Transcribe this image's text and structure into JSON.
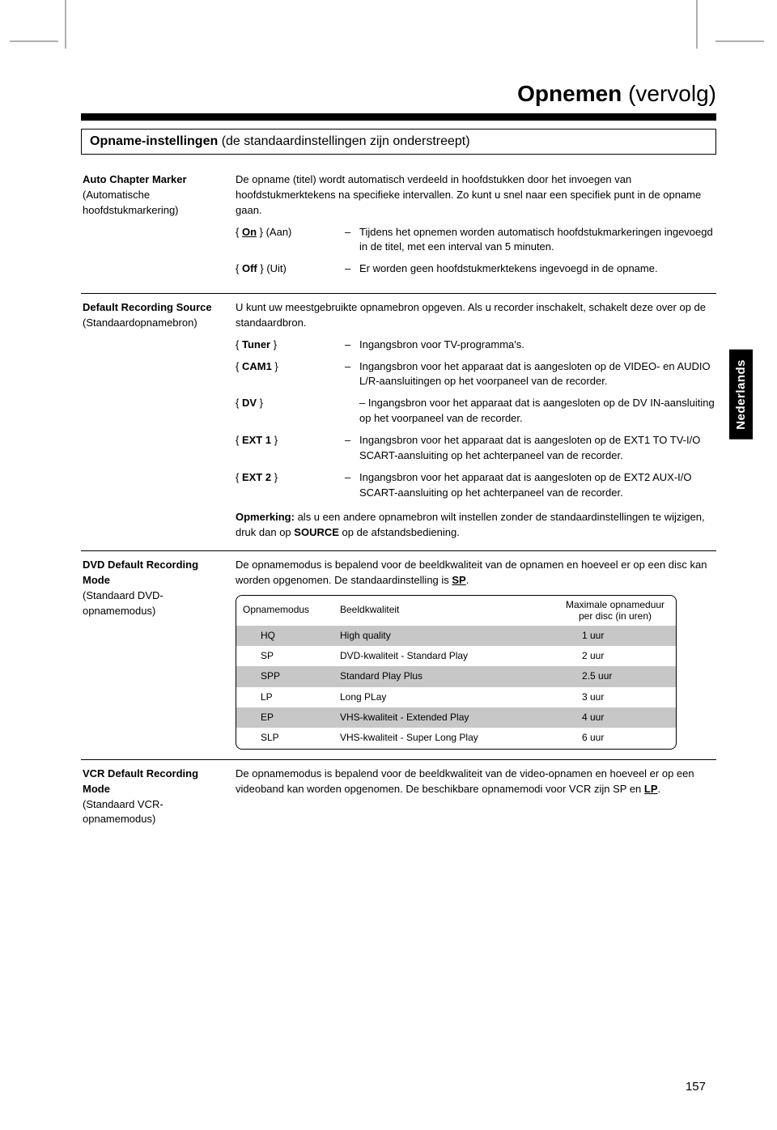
{
  "crop_marks": {
    "color": "#b0b0b0"
  },
  "page": {
    "title_main": "Opnemen",
    "title_paren": "(vervolg)",
    "number": "157",
    "side_tab": "Nederlands"
  },
  "section": {
    "title_bold": "Opname-instellingen",
    "title_light": "(de standaardinstellingen zijn onderstreept)"
  },
  "entries": [
    {
      "name": "Auto Chapter Marker",
      "sub": "(Automatische hoofdstukmarkering)",
      "intro": "De opname (titel) wordt automatisch verdeeld in hoofdstukken door het invoegen van hoofdstukmerktekens na specifieke intervallen. Zo kunt u snel naar een specifiek punt in de opname gaan.",
      "options": [
        {
          "key_pre": "{ ",
          "key_b_u": "On",
          "key_post": " } (Aan)",
          "desc": "Tijdens het opnemen worden automatisch hoofdstukmarkeringen ingevoegd in de titel, met een interval van 5 minuten."
        },
        {
          "key_pre": "{ ",
          "key_b": "Off",
          "key_post": " } (Uit)",
          "desc": "Er worden geen hoofdstukmerktekens ingevoegd in de opname."
        }
      ]
    },
    {
      "name": "Default Recording Source",
      "sub": "(Standaardopnamebron)",
      "intro": "U kunt uw meestgebruikte opnamebron opgeven. Als u recorder inschakelt, schakelt deze over op de standaardbron.",
      "options": [
        {
          "key": "{ Tuner }",
          "desc": "Ingangsbron voor TV-programma's."
        },
        {
          "key": "{ CAM1 }",
          "desc": "Ingangsbron voor het apparaat dat is aangesloten op de VIDEO- en AUDIO L/R-aansluitingen op het voorpaneel van de recorder."
        },
        {
          "key": "{ DV }",
          "desc_pre": "– Ingangsbron voor het apparaat dat is aangesloten op de DV IN-aansluiting op het voorpaneel van de recorder.",
          "no_dash": true
        },
        {
          "key": "{ EXT 1 }",
          "desc": "Ingangsbron voor het apparaat dat is aangesloten op de EXT1 TO TV-I/O SCART-aansluiting op het achterpaneel van de recorder."
        },
        {
          "key": "{ EXT 2 }",
          "desc": "Ingangsbron voor het apparaat dat is aangesloten op de EXT2 AUX-I/O SCART-aansluiting op het achterpaneel van de recorder."
        }
      ],
      "note_b": "Opmerking:",
      "note_rest": " als u een andere opnamebron wilt instellen zonder de standaardinstellingen te wijzigen, druk dan op ",
      "note_b2": "SOURCE",
      "note_rest2": " op de afstandsbediening."
    },
    {
      "name": "DVD Default Recording Mode",
      "sub": "(Standaard DVD-opnamemodus)",
      "intro_pre": "De opnamemodus is bepalend voor de beeldkwaliteit van de opnamen en hoeveel er op een disc kan worden opgenomen. De standaardinstelling is ",
      "intro_b_u": "SP",
      "intro_post": ".",
      "table": {
        "headers": [
          "Opnamemodus",
          "Beeldkwaliteit",
          "Maximale opnameduur per disc (in uren)"
        ],
        "rows": [
          {
            "shade": true,
            "cells": [
              "HQ",
              "High quality",
              "1 uur"
            ]
          },
          {
            "shade": false,
            "cells": [
              "SP",
              "DVD-kwaliteit - Standard Play",
              "2 uur"
            ]
          },
          {
            "shade": true,
            "cells": [
              "SPP",
              "Standard Play Plus",
              "2.5 uur"
            ]
          },
          {
            "shade": false,
            "cells": [
              "LP",
              "Long PLay",
              "3 uur"
            ]
          },
          {
            "shade": true,
            "cells": [
              "EP",
              "VHS-kwaliteit - Extended Play",
              "4 uur"
            ]
          },
          {
            "shade": false,
            "cells": [
              "SLP",
              "VHS-kwaliteit - Super Long Play",
              "6 uur"
            ]
          }
        ]
      }
    },
    {
      "name": "VCR Default Recording Mode",
      "sub": "(Standaard VCR-opnamemodus)",
      "intro_pre": "De opnamemodus is bepalend voor de beeldkwaliteit van de video-opnamen en hoeveel er op een videoband kan worden opgenomen. De beschikbare opnamemodi voor VCR zijn SP en ",
      "intro_b_u": "LP",
      "intro_post": "."
    }
  ]
}
